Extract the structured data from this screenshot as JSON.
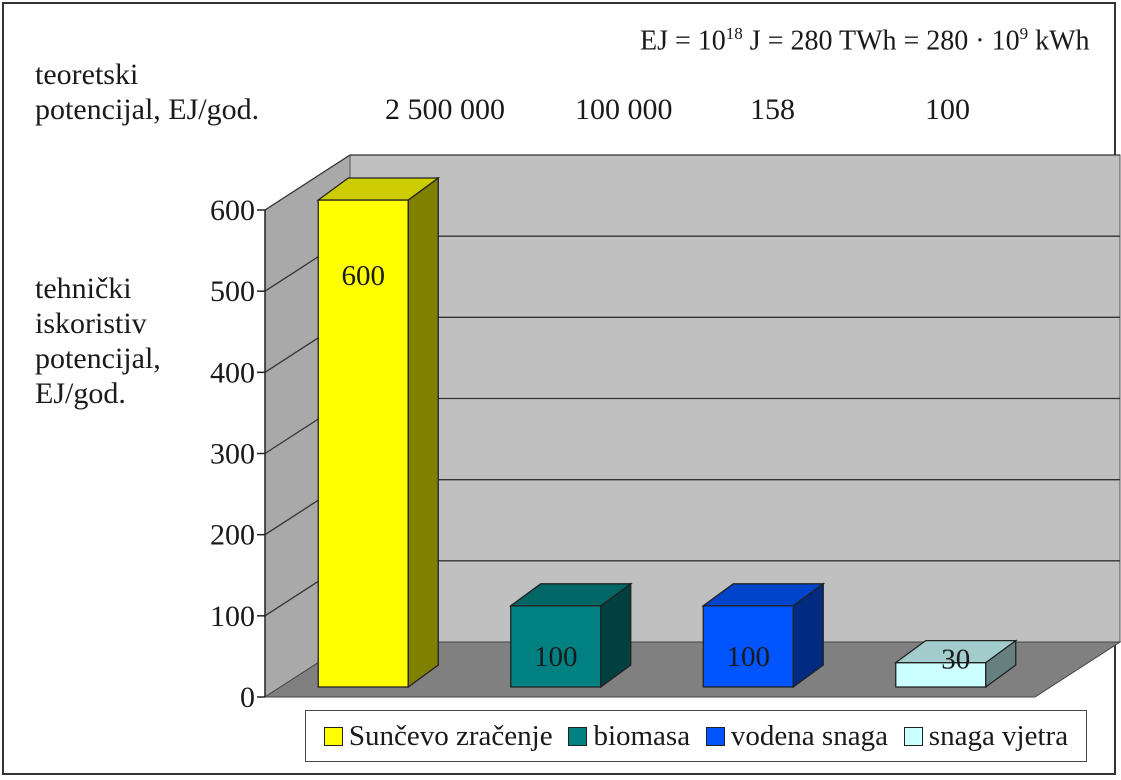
{
  "units_note": "EJ = 10¹⁸ J = 280 TWh = 280 · 10⁹ kWh",
  "theoretical_label_line1": "teoretski",
  "theoretical_label_line2": "potencijal, EJ/god.",
  "theoretical_values": [
    "2 500 000",
    "100 000",
    "158",
    "100"
  ],
  "technical_label_lines": [
    "tehnički",
    "iskoristiv",
    "potencijal,",
    "EJ/god."
  ],
  "colors": {
    "wall": "#c0c0c0",
    "floor": "#808080",
    "grid": "#333333",
    "series": [
      "#ffff00",
      "#008080",
      "#0055ff",
      "#ccffff"
    ]
  },
  "chart_data": {
    "type": "bar",
    "categories": [
      "Sunčevo zračenje",
      "biomasa",
      "vodena snaga",
      "snaga vjetra"
    ],
    "values": [
      600,
      100,
      100,
      30
    ],
    "ylim": [
      0,
      600
    ],
    "y_ticks": [
      0,
      100,
      200,
      300,
      400,
      500,
      600
    ],
    "grid": true,
    "legend": "bottom",
    "data_labels": [
      "600",
      "100",
      "100",
      "30"
    ]
  }
}
